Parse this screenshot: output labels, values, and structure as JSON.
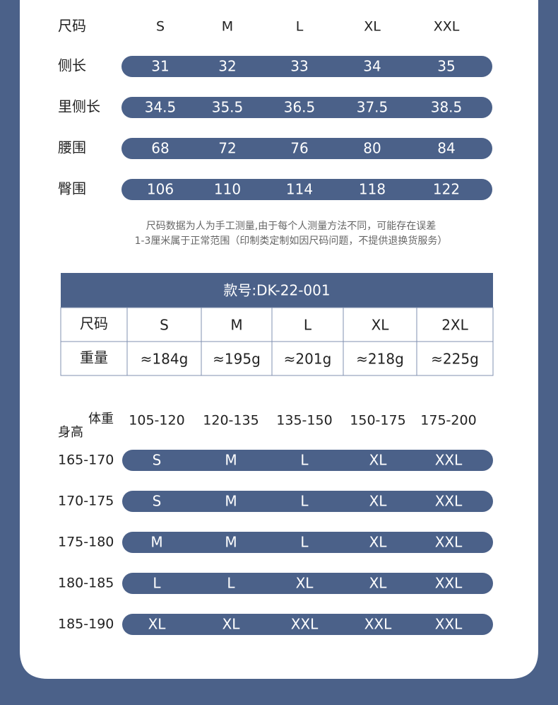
{
  "size_table": {
    "header": {
      "label": "尺码",
      "values": [
        "S",
        "M",
        "L",
        "XL",
        "XXL"
      ]
    },
    "rows": [
      {
        "label": "侧长",
        "values": [
          "31",
          "32",
          "33",
          "34",
          "35"
        ]
      },
      {
        "label": "里侧长",
        "values": [
          "34.5",
          "35.5",
          "36.5",
          "37.5",
          "38.5"
        ]
      },
      {
        "label": "腰围",
        "values": [
          "68",
          "72",
          "76",
          "80",
          "84"
        ]
      },
      {
        "label": "臀围",
        "values": [
          "106",
          "110",
          "114",
          "118",
          "122"
        ]
      }
    ]
  },
  "note": [
    "尺码数据为人为手工测量,由于每个人测量方法不同，可能存在误差",
    "1-3厘米属于正常范围（印制类定制如因尺码问题，不提供退换货服务）"
  ],
  "weight_table": {
    "title": "款号:DK-22-001",
    "rows": [
      {
        "label": "尺码",
        "values": [
          "S",
          "M",
          "L",
          "XL",
          "2XL"
        ]
      },
      {
        "label": "重量",
        "values": [
          "≈184g",
          "≈195g",
          "≈201g",
          "≈218g",
          "≈225g"
        ]
      }
    ]
  },
  "recommend_table": {
    "weight_label": "体重",
    "height_label": "身高",
    "weights": [
      "105-120",
      "120-135",
      "135-150",
      "150-175",
      "175-200"
    ],
    "rows": [
      {
        "height": "165-170",
        "sizes": [
          "S",
          "M",
          "L",
          "XL",
          "XXL"
        ]
      },
      {
        "height": "170-175",
        "sizes": [
          "S",
          "M",
          "L",
          "XL",
          "XXL"
        ]
      },
      {
        "height": "175-180",
        "sizes": [
          "M",
          "M",
          "L",
          "XL",
          "XXL"
        ]
      },
      {
        "height": "180-185",
        "sizes": [
          "L",
          "L",
          "XL",
          "XL",
          "XXL"
        ]
      },
      {
        "height": "185-190",
        "sizes": [
          "XL",
          "XL",
          "XXL",
          "XXL",
          "XXL"
        ]
      }
    ]
  }
}
